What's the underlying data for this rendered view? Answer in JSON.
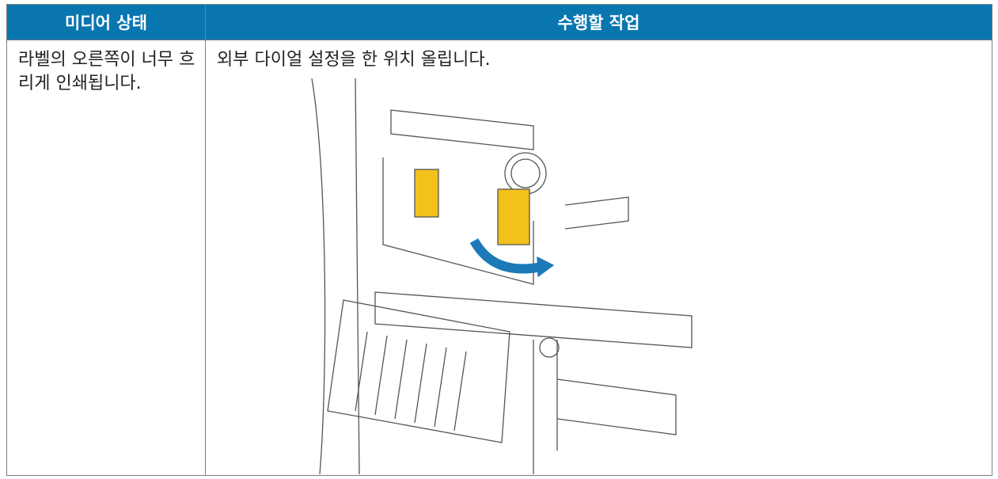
{
  "table": {
    "header": [
      "미디어 상태",
      "수행할 작업"
    ],
    "rows": [
      [
        "라벨의 오른쪽이 너무 흐리게 인쇄됩니다.",
        "외부 다이얼 설정을 한 위치 올립니다."
      ]
    ]
  }
}
